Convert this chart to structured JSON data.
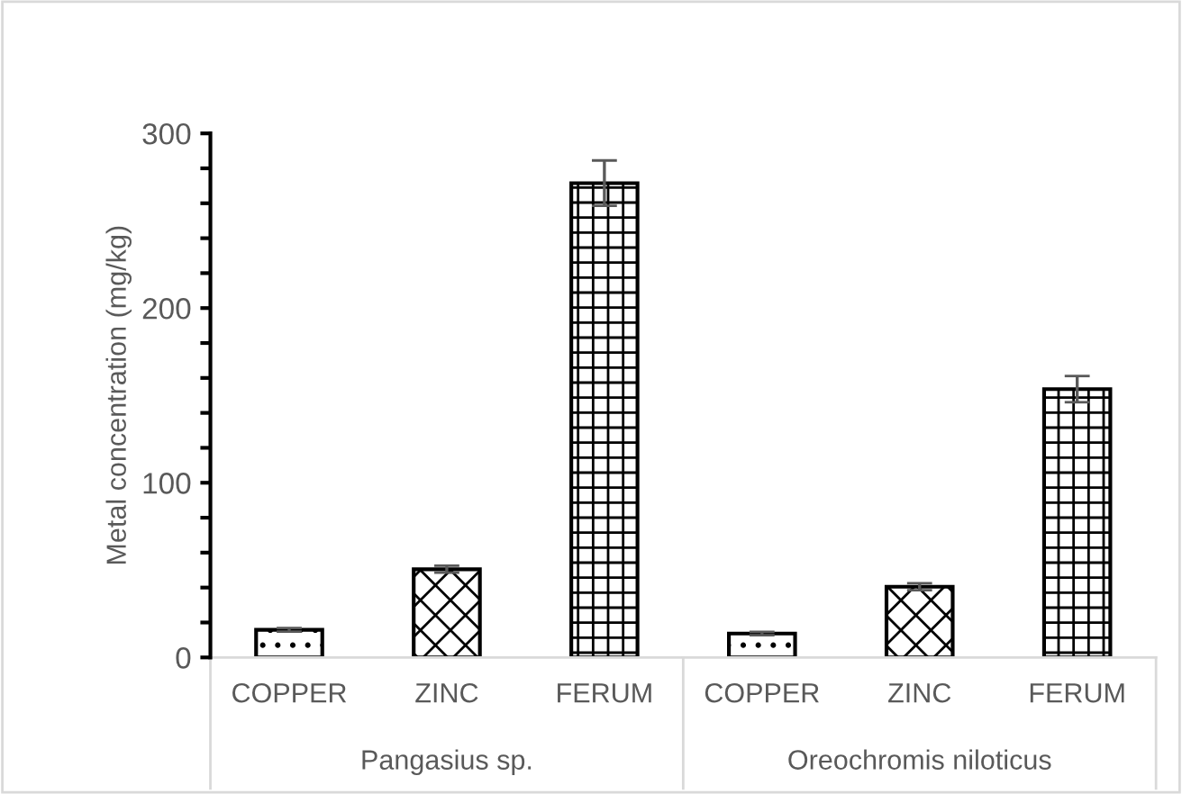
{
  "chart_data": {
    "type": "bar",
    "ylabel": "Metal concentration (mg/kg)",
    "categories": [
      "COPPER",
      "ZINC",
      "FERUM",
      "COPPER",
      "ZINC",
      "FERUM"
    ],
    "series": [
      {
        "color": "#000000",
        "values": [
          15.8,
          50.5,
          271.5,
          13.7,
          40.5,
          153.6
        ],
        "errors": [
          1,
          2,
          13,
          1,
          2,
          7.5
        ]
      }
    ],
    "annotations": [
      "Pangasius sp.",
      "Oreochromis niloticus"
    ],
    "ylim": [
      0,
      300
    ],
    "yticks": [
      0,
      {
        "value": 20,
        "label": null
      },
      {
        "value": 40,
        "label": null
      },
      {
        "value": 60,
        "label": null
      },
      {
        "value": 80,
        "label": null
      },
      100,
      {
        "value": 120,
        "label": null
      },
      {
        "value": 140,
        "label": null
      },
      {
        "value": 160,
        "label": null
      },
      {
        "value": 180,
        "label": null
      },
      200,
      {
        "value": 220,
        "label": null
      },
      {
        "value": 240,
        "label": null
      },
      {
        "value": 260,
        "label": null
      },
      {
        "value": 280,
        "label": null
      },
      300
    ],
    "grid": false,
    "legend": false
  }
}
